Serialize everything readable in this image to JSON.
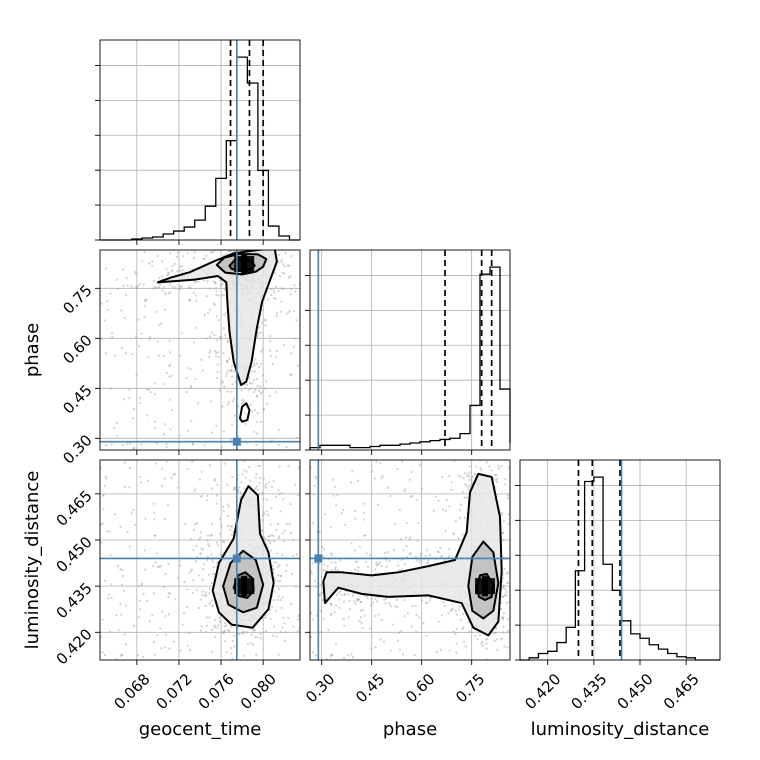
{
  "chart_data": {
    "type": "corner",
    "parameters": [
      {
        "name": "geocent_time",
        "label": "geocent_time",
        "range": [
          0.0645,
          0.0835
        ],
        "ticks": [
          0.068,
          0.072,
          0.076,
          0.08
        ],
        "tick_labels": [
          "0.068",
          "0.072",
          "0.076",
          "0.080"
        ],
        "truth": 0.0775,
        "quantiles": [
          0.0769,
          0.0787,
          0.08
        ]
      },
      {
        "name": "phase",
        "label": "phase",
        "range": [
          0.265,
          0.865
        ],
        "ticks": [
          0.3,
          0.45,
          0.6,
          0.75
        ],
        "tick_labels": [
          "0.30",
          "0.45",
          "0.60",
          "0.75"
        ],
        "truth": 0.29,
        "quantiles": [
          0.67,
          0.78,
          0.81
        ]
      },
      {
        "name": "luminosity_distance",
        "label": "luminosity_distance",
        "range": [
          0.411,
          0.476
        ],
        "ticks": [
          0.42,
          0.435,
          0.45,
          0.465
        ],
        "tick_labels": [
          "0.420",
          "0.435",
          "0.450",
          "0.465"
        ],
        "truth": 0.444,
        "quantiles": [
          0.43,
          0.4345,
          0.4435
        ]
      }
    ],
    "histograms": [
      {
        "param": "geocent_time",
        "bin_edges": [
          0.0645,
          0.0655,
          0.0665,
          0.0675,
          0.0685,
          0.0695,
          0.0705,
          0.0715,
          0.0725,
          0.0735,
          0.0745,
          0.0755,
          0.0765,
          0.0775,
          0.0785,
          0.0795,
          0.0805,
          0.0815,
          0.0825,
          0.0835
        ],
        "counts": [
          0,
          0,
          0,
          0.005,
          0.01,
          0.015,
          0.03,
          0.045,
          0.065,
          0.1,
          0.17,
          0.31,
          0.5,
          0.92,
          0.79,
          0.35,
          0.07,
          0.02,
          0
        ]
      },
      {
        "param": "phase",
        "bin_edges": [
          0.265,
          0.295,
          0.325,
          0.355,
          0.385,
          0.415,
          0.445,
          0.475,
          0.505,
          0.535,
          0.565,
          0.595,
          0.625,
          0.655,
          0.685,
          0.715,
          0.745,
          0.775,
          0.805,
          0.835,
          0.865
        ],
        "counts": [
          0.01,
          0.02,
          0.02,
          0.02,
          0.01,
          0.01,
          0.015,
          0.02,
          0.02,
          0.025,
          0.03,
          0.035,
          0.04,
          0.045,
          0.05,
          0.07,
          0.19,
          0.75,
          0.78,
          0.26,
          0.03
        ]
      },
      {
        "param": "luminosity_distance",
        "bin_edges": [
          0.411,
          0.414,
          0.417,
          0.42,
          0.423,
          0.426,
          0.429,
          0.432,
          0.435,
          0.438,
          0.441,
          0.444,
          0.447,
          0.45,
          0.453,
          0.456,
          0.459,
          0.462,
          0.465,
          0.468,
          0.471,
          0.474,
          0.476
        ],
        "counts": [
          0,
          0.01,
          0.03,
          0.04,
          0.08,
          0.15,
          0.41,
          0.82,
          0.84,
          0.44,
          0.32,
          0.18,
          0.12,
          0.1,
          0.07,
          0.05,
          0.03,
          0.015,
          0.01,
          0,
          0,
          0
        ]
      }
    ],
    "contours": [
      {
        "x": "geocent_time",
        "y": "phase",
        "levels": [
          [
            [
              0.0768,
              0.818
            ],
            [
              0.0773,
              0.835
            ],
            [
              0.0781,
              0.84
            ],
            [
              0.0789,
              0.831
            ],
            [
              0.0792,
              0.818
            ],
            [
              0.0787,
              0.806
            ],
            [
              0.0778,
              0.803
            ],
            [
              0.077,
              0.808
            ]
          ],
          [
            [
              0.0756,
              0.82
            ],
            [
              0.0763,
              0.842
            ],
            [
              0.0777,
              0.853
            ],
            [
              0.0795,
              0.852
            ],
            [
              0.0803,
              0.838
            ],
            [
              0.08,
              0.815
            ],
            [
              0.0793,
              0.8
            ],
            [
              0.078,
              0.792
            ],
            [
              0.0764,
              0.797
            ]
          ],
          [
            [
              0.07,
              0.768
            ],
            [
              0.0735,
              0.776
            ],
            [
              0.0757,
              0.787
            ],
            [
              0.0765,
              0.768
            ],
            [
              0.0766,
              0.71
            ],
            [
              0.0768,
              0.62
            ],
            [
              0.0772,
              0.53
            ],
            [
              0.0779,
              0.46
            ],
            [
              0.0784,
              0.47
            ],
            [
              0.0789,
              0.53
            ],
            [
              0.0794,
              0.63
            ],
            [
              0.0799,
              0.71
            ],
            [
              0.0806,
              0.77
            ],
            [
              0.0813,
              0.83
            ],
            [
              0.0811,
              0.87
            ],
            [
              0.0795,
              0.865
            ],
            [
              0.0772,
              0.855
            ],
            [
              0.0754,
              0.832
            ],
            [
              0.073,
              0.798
            ],
            [
              0.0712,
              0.782
            ]
          ],
          [
            [
              0.0778,
              0.36
            ],
            [
              0.078,
              0.395
            ],
            [
              0.0784,
              0.405
            ],
            [
              0.0787,
              0.385
            ],
            [
              0.0785,
              0.355
            ],
            [
              0.078,
              0.35
            ]
          ]
        ]
      },
      {
        "x": "geocent_time",
        "y": "luminosity_distance",
        "levels": [
          [
            [
              0.0772,
              0.4345
            ],
            [
              0.0776,
              0.4385
            ],
            [
              0.0783,
              0.4395
            ],
            [
              0.079,
              0.4375
            ],
            [
              0.0791,
              0.4335
            ],
            [
              0.0785,
              0.4312
            ],
            [
              0.0777,
              0.4318
            ]
          ],
          [
            [
              0.0762,
              0.435
            ],
            [
              0.0769,
              0.4425
            ],
            [
              0.0781,
              0.4465
            ],
            [
              0.0793,
              0.4435
            ],
            [
              0.08,
              0.4355
            ],
            [
              0.0794,
              0.428
            ],
            [
              0.0781,
              0.4265
            ],
            [
              0.0767,
              0.429
            ]
          ],
          [
            [
              0.0752,
              0.4335
            ],
            [
              0.0758,
              0.4425
            ],
            [
              0.0772,
              0.4505
            ],
            [
              0.0779,
              0.463
            ],
            [
              0.0786,
              0.4675
            ],
            [
              0.0795,
              0.4645
            ],
            [
              0.0797,
              0.452
            ],
            [
              0.0805,
              0.446
            ],
            [
              0.081,
              0.436
            ],
            [
              0.0805,
              0.4275
            ],
            [
              0.079,
              0.4215
            ],
            [
              0.077,
              0.4225
            ],
            [
              0.0758,
              0.4265
            ]
          ]
        ]
      },
      {
        "x": "phase",
        "y": "luminosity_distance",
        "levels": [
          [
            [
              0.765,
              0.4345
            ],
            [
              0.775,
              0.4385
            ],
            [
              0.795,
              0.439
            ],
            [
              0.815,
              0.4355
            ],
            [
              0.81,
              0.4315
            ],
            [
              0.79,
              0.4305
            ],
            [
              0.772,
              0.4315
            ]
          ],
          [
            [
              0.74,
              0.435
            ],
            [
              0.752,
              0.4445
            ],
            [
              0.785,
              0.4495
            ],
            [
              0.815,
              0.446
            ],
            [
              0.83,
              0.436
            ],
            [
              0.815,
              0.427
            ],
            [
              0.785,
              0.4245
            ],
            [
              0.752,
              0.427
            ]
          ],
          [
            [
              0.305,
              0.4365
            ],
            [
              0.315,
              0.4395
            ],
            [
              0.36,
              0.4395
            ],
            [
              0.45,
              0.4385
            ],
            [
              0.53,
              0.4395
            ],
            [
              0.62,
              0.4415
            ],
            [
              0.7,
              0.4435
            ],
            [
              0.735,
              0.4525
            ],
            [
              0.745,
              0.4655
            ],
            [
              0.77,
              0.4715
            ],
            [
              0.81,
              0.4705
            ],
            [
              0.835,
              0.4575
            ],
            [
              0.84,
              0.44
            ],
            [
              0.83,
              0.4235
            ],
            [
              0.8,
              0.419
            ],
            [
              0.755,
              0.4215
            ],
            [
              0.72,
              0.4295
            ],
            [
              0.62,
              0.432
            ],
            [
              0.5,
              0.4315
            ],
            [
              0.42,
              0.4325
            ],
            [
              0.35,
              0.4345
            ],
            [
              0.31,
              0.4295
            ]
          ]
        ]
      }
    ],
    "density_peaks": [
      {
        "x": "geocent_time",
        "y": "phase",
        "x_value": 0.0782,
        "y_value": 0.823
      },
      {
        "x": "geocent_time",
        "y": "luminosity_distance",
        "x_value": 0.0782,
        "y_value": 0.435
      },
      {
        "x": "phase",
        "y": "luminosity_distance",
        "x_value": 0.79,
        "y_value": 0.435
      }
    ],
    "colors": {
      "truth": "#4682b4",
      "contour": "#000000",
      "scatter": "#9a9a9a",
      "grid": "#b0b0b0"
    }
  }
}
